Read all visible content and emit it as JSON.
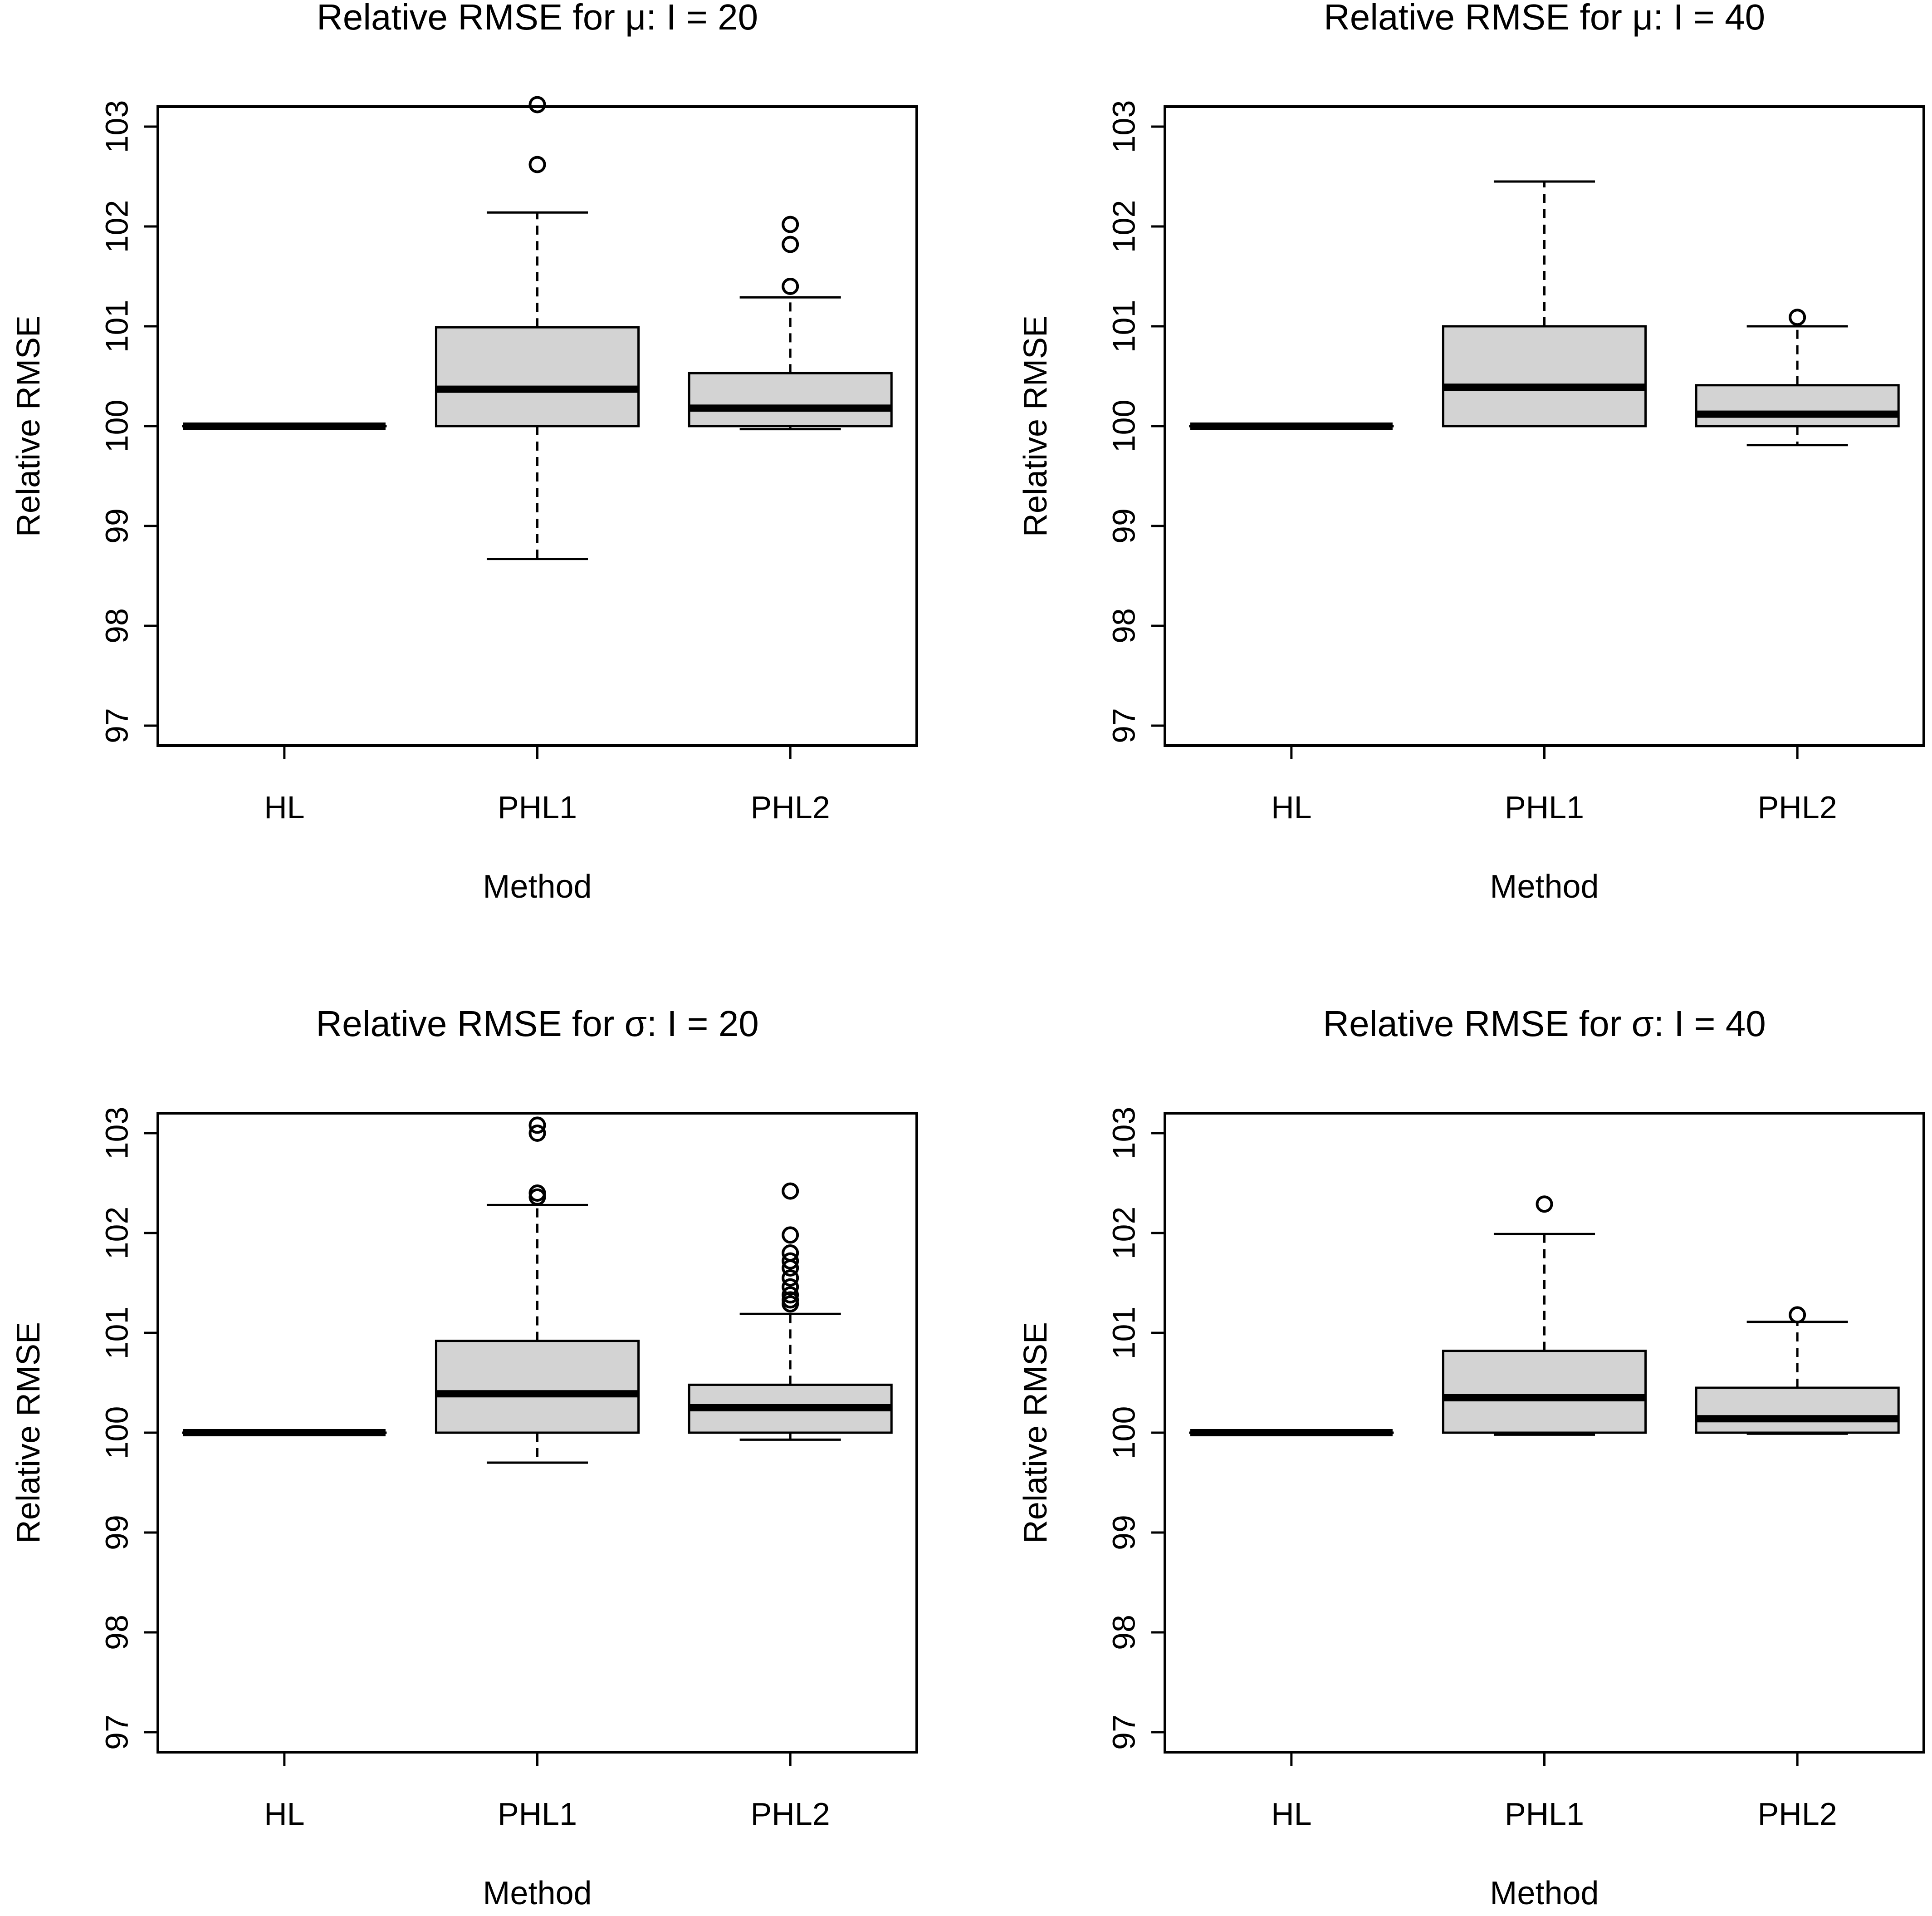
{
  "chart_data": [
    {
      "type": "boxplot",
      "title": "Relative RMSE for μ: I = 20",
      "xlabel": "Method",
      "ylabel": "Relative RMSE",
      "ylim": [
        96.8,
        103.2
      ],
      "yticks": [
        97,
        98,
        99,
        100,
        101,
        102,
        103
      ],
      "categories": [
        "HL",
        "PHL1",
        "PHL2"
      ],
      "boxes": [
        {
          "name": "HL",
          "q1": 100,
          "median": 100,
          "q3": 100,
          "whisker_low": 100,
          "whisker_high": 100,
          "outliers": []
        },
        {
          "name": "PHL1",
          "q1": 100.0,
          "median": 100.37,
          "q3": 100.99,
          "whisker_low": 98.67,
          "whisker_high": 102.14,
          "outliers": [
            102.62,
            103.22
          ]
        },
        {
          "name": "PHL2",
          "q1": 100.0,
          "median": 100.18,
          "q3": 100.53,
          "whisker_low": 99.97,
          "whisker_high": 101.29,
          "outliers": [
            101.4,
            101.82,
            102.02
          ]
        }
      ]
    },
    {
      "type": "boxplot",
      "title": "Relative RMSE for μ: I = 40",
      "xlabel": "Method",
      "ylabel": "Relative RMSE",
      "ylim": [
        96.8,
        103.2
      ],
      "yticks": [
        97,
        98,
        99,
        100,
        101,
        102,
        103
      ],
      "categories": [
        "HL",
        "PHL1",
        "PHL2"
      ],
      "boxes": [
        {
          "name": "HL",
          "q1": 100,
          "median": 100,
          "q3": 100,
          "whisker_low": 100,
          "whisker_high": 100,
          "outliers": []
        },
        {
          "name": "PHL1",
          "q1": 100.0,
          "median": 100.39,
          "q3": 101.0,
          "whisker_low": 100.0,
          "whisker_high": 102.45,
          "outliers": []
        },
        {
          "name": "PHL2",
          "q1": 100.0,
          "median": 100.12,
          "q3": 100.41,
          "whisker_low": 99.81,
          "whisker_high": 101.0,
          "outliers": [
            101.09
          ]
        }
      ]
    },
    {
      "type": "boxplot",
      "title": "Relative RMSE for σ: I = 20",
      "xlabel": "Method",
      "ylabel": "Relative RMSE",
      "ylim": [
        96.8,
        103.2
      ],
      "yticks": [
        97,
        98,
        99,
        100,
        101,
        102,
        103
      ],
      "categories": [
        "HL",
        "PHL1",
        "PHL2"
      ],
      "boxes": [
        {
          "name": "HL",
          "q1": 100,
          "median": 100,
          "q3": 100,
          "whisker_low": 100,
          "whisker_high": 100,
          "outliers": []
        },
        {
          "name": "PHL1",
          "q1": 100.0,
          "median": 100.39,
          "q3": 100.92,
          "whisker_low": 99.7,
          "whisker_high": 102.28,
          "outliers": [
            102.36,
            102.4,
            103.0,
            103.08
          ]
        },
        {
          "name": "PHL2",
          "q1": 100.0,
          "median": 100.25,
          "q3": 100.48,
          "whisker_low": 99.93,
          "whisker_high": 101.19,
          "outliers": [
            101.29,
            101.33,
            101.38,
            101.46,
            101.55,
            101.65,
            101.72,
            101.8,
            101.98,
            102.42
          ]
        }
      ]
    },
    {
      "type": "boxplot",
      "title": "Relative RMSE for σ: I = 40",
      "xlabel": "Method",
      "ylabel": "Relative RMSE",
      "ylim": [
        96.8,
        103.2
      ],
      "yticks": [
        97,
        98,
        99,
        100,
        101,
        102,
        103
      ],
      "categories": [
        "HL",
        "PHL1",
        "PHL2"
      ],
      "boxes": [
        {
          "name": "HL",
          "q1": 100,
          "median": 100,
          "q3": 100,
          "whisker_low": 100,
          "whisker_high": 100,
          "outliers": []
        },
        {
          "name": "PHL1",
          "q1": 100.0,
          "median": 100.35,
          "q3": 100.82,
          "whisker_low": 99.98,
          "whisker_high": 101.99,
          "outliers": [
            102.29
          ]
        },
        {
          "name": "PHL2",
          "q1": 100.0,
          "median": 100.14,
          "q3": 100.45,
          "whisker_low": 99.99,
          "whisker_high": 101.11,
          "outliers": [
            101.18
          ]
        }
      ]
    }
  ]
}
